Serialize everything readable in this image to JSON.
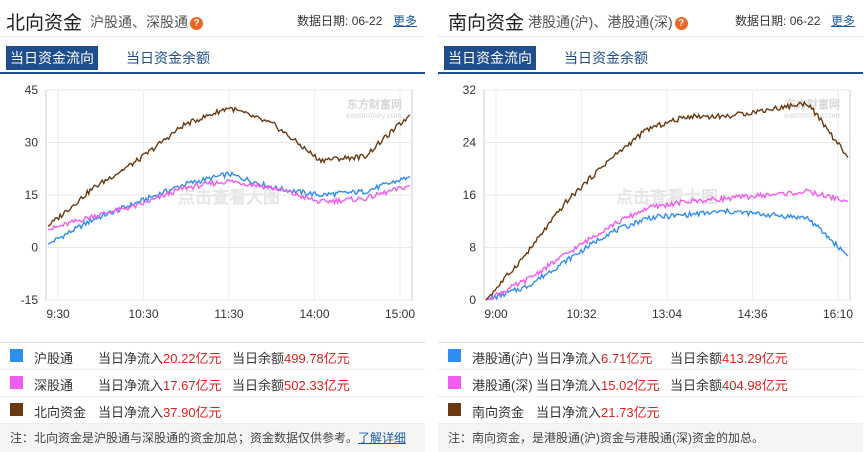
{
  "left": {
    "title": "北向资金",
    "subtitle": "沪股通、深股通",
    "date_label": "数据日期:",
    "date": "06-22",
    "more": "更多",
    "tabs": [
      "当日资金流向",
      "当日资金余额"
    ],
    "watermark": "点击查看大图",
    "brand": "东方财富网",
    "brand_sub": "eastmoney.com",
    "y_ticks": [
      "45",
      "30",
      "15",
      "0",
      "-15"
    ],
    "x_ticks": [
      "9:30",
      "10:30",
      "11:30",
      "14:00",
      "15:00"
    ],
    "legend": [
      {
        "name": "沪股通",
        "flow_label": "当日净流入",
        "flow": "20.22亿元",
        "bal_label": "当日余额",
        "bal": "499.78亿元",
        "color": "#2f8ff0"
      },
      {
        "name": "深股通",
        "flow_label": "当日净流入",
        "flow": "17.67亿元",
        "bal_label": "当日余额",
        "bal": "502.33亿元",
        "color": "#f05cf0"
      },
      {
        "name": "北向资金",
        "flow_label": "当日净流入",
        "flow": "37.90亿元",
        "bal_label": "",
        "bal": "",
        "color": "#6b3a12"
      }
    ],
    "note": "注：北向资金是沪股通与深股通的资金加总；资金数据仅供参考。",
    "note_link": "了解详细"
  },
  "right": {
    "title": "南向资金",
    "subtitle": "港股通(沪)、港股通(深)",
    "date_label": "数据日期:",
    "date": "06-22",
    "more": "更多",
    "tabs": [
      "当日资金流向",
      "当日资金余额"
    ],
    "watermark": "点击查看大图",
    "brand": "东方财富网",
    "brand_sub": "eastmoney.com",
    "y_ticks": [
      "32",
      "24",
      "16",
      "8",
      "0"
    ],
    "x_ticks": [
      "9:00",
      "10:32",
      "13:04",
      "14:36",
      "16:10"
    ],
    "legend": [
      {
        "name": "港股通(沪)",
        "flow_label": "当日净流入",
        "flow": "6.71亿元",
        "bal_label": "当日余额",
        "bal": "413.29亿元",
        "color": "#2f8ff0"
      },
      {
        "name": "港股通(深)",
        "flow_label": "当日净流入",
        "flow": "15.02亿元",
        "bal_label": "当日余额",
        "bal": "404.98亿元",
        "color": "#f05cf0"
      },
      {
        "name": "南向资金",
        "flow_label": "当日净流入",
        "flow": "21.73亿元",
        "bal_label": "",
        "bal": "",
        "color": "#6b3a12"
      }
    ],
    "note": "注：南向资金，是港股通(沪)资金与港股通(深)资金的加总。",
    "note_link": ""
  },
  "chart_data": [
    {
      "type": "line",
      "x": [
        "9:30",
        "10:00",
        "10:30",
        "11:00",
        "11:30",
        "13:30",
        "14:00",
        "14:30",
        "15:00"
      ],
      "ylim": [
        -15,
        45
      ],
      "series": [
        {
          "name": "沪股通",
          "color": "#2f8ff0",
          "values": [
            1,
            8,
            13,
            18,
            21,
            17,
            15,
            16,
            20.22
          ]
        },
        {
          "name": "深股通",
          "color": "#f05cf0",
          "values": [
            5,
            9,
            12,
            17,
            19,
            17,
            13,
            14,
            17.67
          ]
        },
        {
          "name": "北向资金",
          "color": "#6b3a12",
          "values": [
            6,
            17,
            25,
            35,
            40,
            35,
            25,
            26,
            37.9
          ]
        }
      ]
    },
    {
      "type": "line",
      "x": [
        "9:00",
        "9:30",
        "10:00",
        "10:32",
        "11:30",
        "13:04",
        "14:00",
        "14:36",
        "15:30",
        "16:10"
      ],
      "ylim": [
        0,
        32
      ],
      "series": [
        {
          "name": "港股通(沪)",
          "color": "#2f8ff0",
          "values": [
            0,
            2,
            6,
            10,
            12.5,
            13,
            13.5,
            13,
            12.5,
            6.71
          ]
        },
        {
          "name": "港股通(深)",
          "color": "#f05cf0",
          "values": [
            0,
            3,
            7,
            11,
            14,
            15,
            15.5,
            16,
            16.5,
            15.02
          ]
        },
        {
          "name": "南向资金",
          "color": "#6b3a12",
          "values": [
            0,
            7,
            15,
            21,
            26,
            28,
            28,
            29,
            30,
            21.73
          ]
        }
      ]
    }
  ]
}
